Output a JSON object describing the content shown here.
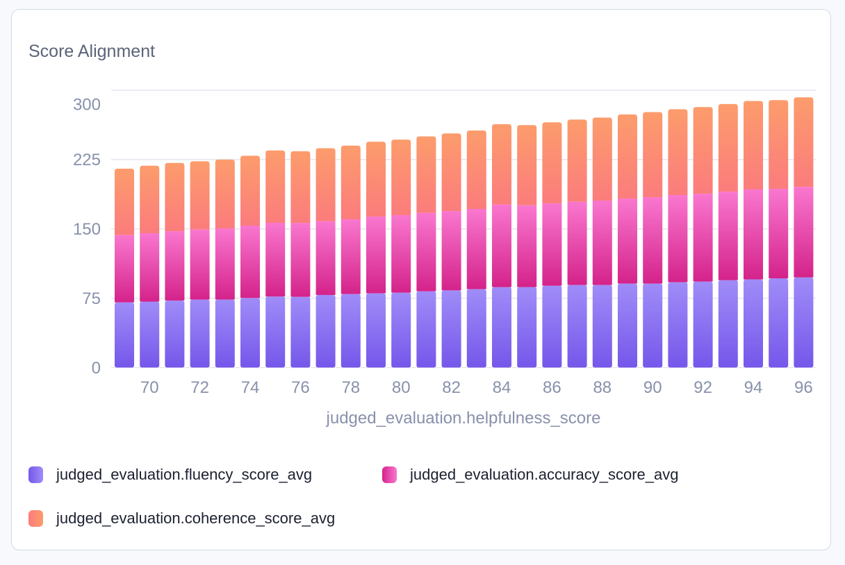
{
  "card": {
    "title": "Score Alignment"
  },
  "colors": {
    "fluency": [
      "#a08cf8",
      "#7557ea"
    ],
    "accuracy": [
      "#f977cf",
      "#d4238a"
    ],
    "coherence": [
      "#fc9c6c",
      "#fb7c7c"
    ]
  },
  "chart_data": {
    "type": "bar",
    "stacked": true,
    "xlabel": "judged_evaluation.helpfulness_score",
    "ylabel": "",
    "ylim": [
      0,
      300
    ],
    "yticks": [
      0,
      75,
      150,
      225,
      300
    ],
    "xticks": [
      70,
      72,
      74,
      76,
      78,
      80,
      82,
      84,
      86,
      88,
      90,
      92,
      94,
      96
    ],
    "grid": true,
    "legend": "bottom",
    "categories": [
      69,
      70,
      71,
      72,
      73,
      74,
      75,
      76,
      77,
      78,
      79,
      80,
      81,
      82,
      83,
      84,
      85,
      86,
      87,
      88,
      89,
      90,
      91,
      92,
      93,
      94,
      95,
      96
    ],
    "series": [
      {
        "name": "judged_evaluation.fluency_score_avg",
        "key": "fluency",
        "values": [
          70.5,
          71.3,
          72.5,
          73.5,
          73.5,
          75.3,
          76.8,
          76.5,
          78.5,
          79.5,
          80.3,
          81,
          82.5,
          83.5,
          84.8,
          87,
          87,
          88.5,
          89.3,
          89.3,
          90.8,
          90.8,
          92.3,
          93,
          94.5,
          95.3,
          96.5,
          97.5
        ]
      },
      {
        "name": "judged_evaluation.accuracy_score_avg",
        "key": "accuracy",
        "values": [
          72.8,
          74,
          75,
          75.8,
          77,
          78.3,
          79.8,
          80,
          79.8,
          80.8,
          83,
          83.8,
          84.8,
          85.8,
          86.8,
          89.3,
          88.5,
          89,
          90,
          91.3,
          92,
          93.5,
          94.3,
          95,
          95.8,
          97.3,
          96.8,
          98
        ]
      },
      {
        "name": "judged_evaluation.coherence_score_avg",
        "key": "coherence",
        "values": [
          71.8,
          73,
          73.8,
          73.8,
          74.5,
          75.5,
          78.3,
          77.5,
          79,
          79.8,
          81,
          81.8,
          82.8,
          84,
          84.8,
          87,
          86.8,
          87.8,
          89,
          89.8,
          91,
          92,
          92.8,
          93.8,
          94.8,
          95.8,
          96,
          96.8
        ]
      }
    ]
  }
}
